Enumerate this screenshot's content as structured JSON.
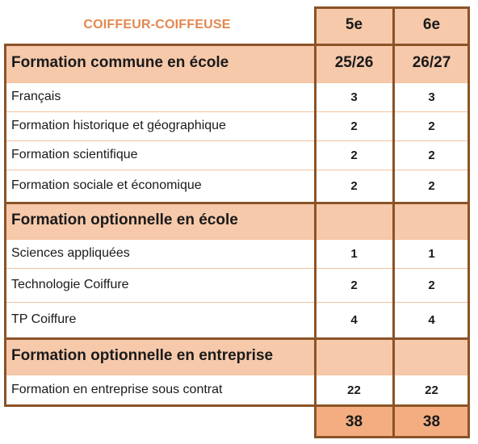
{
  "title": "COIFFEUR-COIFFEUSE",
  "header": {
    "col1": "5e",
    "col2": "6e"
  },
  "rows": [
    {
      "type": "section",
      "label": "Formation commune en école",
      "col1": "25/26",
      "col2": "26/27"
    },
    {
      "type": "item",
      "label": "Français",
      "col1": "3",
      "col2": "3"
    },
    {
      "type": "item",
      "label": "Formation historique et géographique",
      "col1": "2",
      "col2": "2"
    },
    {
      "type": "item",
      "label": "Formation scientifique",
      "col1": "2",
      "col2": "2"
    },
    {
      "type": "item",
      "label": "Formation sociale et économique",
      "col1": "2",
      "col2": "2"
    },
    {
      "type": "section",
      "label": "Formation optionnelle en école",
      "col1": "",
      "col2": ""
    },
    {
      "type": "item",
      "label": "Sciences appliquées",
      "col1": "1",
      "col2": "1"
    },
    {
      "type": "item",
      "label": "Technologie Coiffure",
      "col1": "2",
      "col2": "2"
    },
    {
      "type": "item",
      "label": "TP Coiffure",
      "col1": "4",
      "col2": "4"
    },
    {
      "type": "section",
      "label": "Formation optionnelle en entreprise",
      "col1": "",
      "col2": ""
    },
    {
      "type": "item",
      "label": "Formation en entreprise sous contrat",
      "col1": "22",
      "col2": "22"
    }
  ],
  "total": {
    "col1": "38",
    "col2": "38"
  },
  "colors": {
    "title": "#e3874f",
    "section_fill": "#f6c9aa",
    "total_fill": "#f3ad80",
    "border": "#8b5327",
    "row_line": "#f3c29e"
  }
}
